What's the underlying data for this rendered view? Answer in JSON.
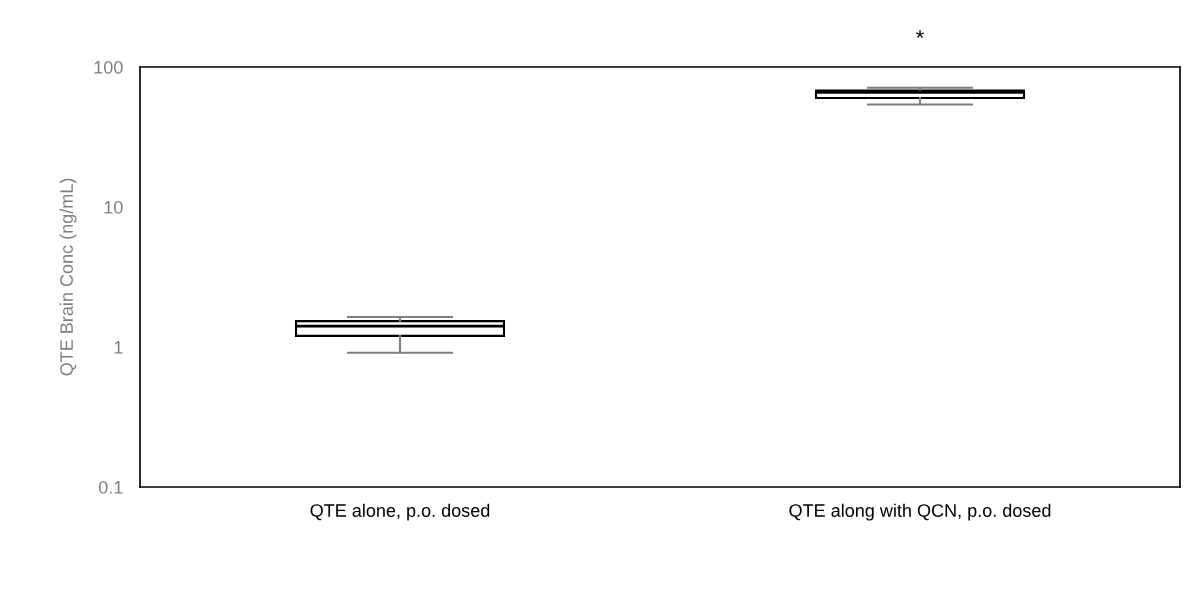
{
  "chart_data": {
    "type": "box",
    "ylabel": "QTE Brain Conc (ng/mL)",
    "categories": [
      "QTE alone, p.o. dosed",
      "QTE along with QCN, p.o. dosed"
    ],
    "boxes": [
      {
        "low": 0.91,
        "q1": 1.2,
        "median": 1.41,
        "q3": 1.53,
        "high": 1.64
      },
      {
        "low": 54,
        "q1": 60,
        "median": 66,
        "q3": 68,
        "high": 71
      }
    ],
    "log": "y",
    "ylim": [
      0.1,
      100
    ],
    "yticks": [
      {
        "value": 0.1,
        "label": "0.1"
      },
      1,
      10,
      100
    ],
    "grid": false,
    "legend": false,
    "annotations": [
      "*"
    ]
  }
}
